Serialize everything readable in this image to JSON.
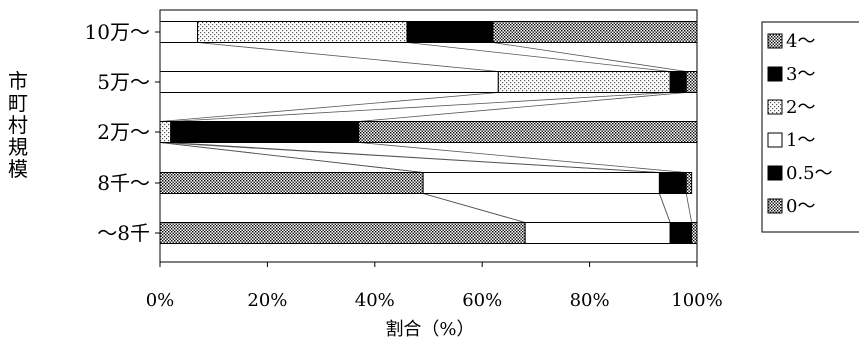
{
  "chart_data": {
    "type": "bar",
    "stacked": "percent",
    "orientation": "horizontal",
    "title": "",
    "xlabel": "割合（%）",
    "ylabel": "市町村規模",
    "xlim": [
      0,
      100
    ],
    "x_ticks": [
      "0%",
      "20%",
      "40%",
      "60%",
      "80%",
      "100%"
    ],
    "categories": [
      "10万～",
      "5万～",
      "2万～",
      "8千～",
      "～8千"
    ],
    "series": [
      {
        "name": "0～",
        "values": [
          0,
          0,
          0,
          49,
          68
        ],
        "color": "#8c8c8c",
        "pattern": "dot"
      },
      {
        "name": "0.5～",
        "values": [
          0,
          0,
          0,
          0,
          0
        ],
        "color": "#000000",
        "pattern": "solid"
      },
      {
        "name": "1～",
        "values": [
          7,
          63,
          0,
          44,
          27
        ],
        "color": "#ffffff",
        "pattern": "none"
      },
      {
        "name": "2～",
        "values": [
          39,
          32,
          2,
          0,
          0
        ],
        "color": "#d0d0d0",
        "pattern": "dot"
      },
      {
        "name": "3～",
        "values": [
          16,
          3,
          35,
          5,
          4
        ],
        "color": "#000000",
        "pattern": "solid"
      },
      {
        "name": "4～",
        "values": [
          38,
          2,
          63,
          1,
          1
        ],
        "color": "#9a9a9a",
        "pattern": "dot"
      }
    ],
    "legend_order": [
      "4～",
      "3～",
      "2～",
      "1～",
      "0.5～",
      "0～"
    ],
    "legend_position": "right",
    "series_lines": true,
    "grid": false
  }
}
